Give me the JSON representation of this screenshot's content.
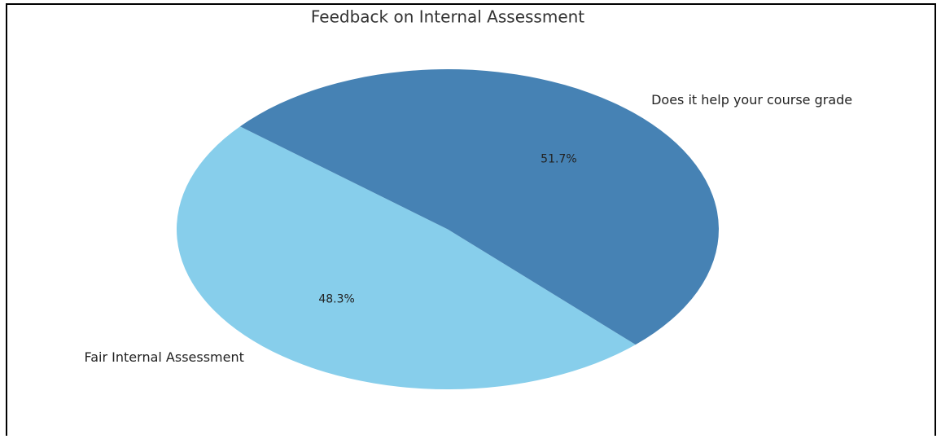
{
  "chart_data": {
    "type": "pie",
    "title": "Feedback on Internal Assessment",
    "categories": [
      "Fair Internal Assessment",
      "Does it help your course grade"
    ],
    "values": [
      48.3,
      51.7
    ],
    "value_labels": [
      "48.3%",
      "51.7%"
    ],
    "colors": [
      "#87ceeb",
      "#4682b4"
    ],
    "startangle": 140
  }
}
